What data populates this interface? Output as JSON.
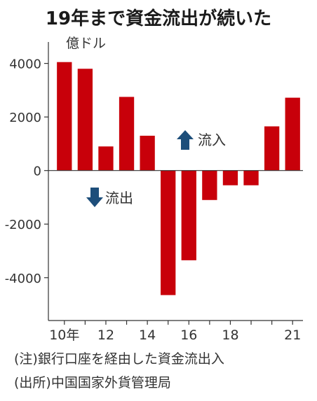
{
  "title": "19年まで資金流出が続いた",
  "notes": {
    "note": "(注)銀行口座を経由した資金流出入",
    "source": "(出所)中国国家外貨管理局"
  },
  "colors": {
    "bar": "#c8000a",
    "arrow": "#1d4e7a",
    "axis": "#333333"
  },
  "chart_data": {
    "type": "bar",
    "ylabel": "億ドル",
    "ylim": [
      -5600,
      4800
    ],
    "yticks": [
      4000,
      2000,
      0,
      -2000,
      -4000
    ],
    "ytick_labels": [
      "4000",
      "2000",
      "0",
      "-2000",
      "-4000"
    ],
    "x": [
      2010,
      2011,
      2012,
      2013,
      2014,
      2015,
      2016,
      2017,
      2018,
      2019,
      2020,
      2021
    ],
    "xtick_labels": [
      "10年",
      "",
      "12",
      "",
      "14",
      "",
      "16",
      "",
      "18",
      "",
      "",
      "21"
    ],
    "values": [
      4050,
      3800,
      900,
      2750,
      1300,
      -4650,
      -3350,
      -1100,
      -550,
      -550,
      1650,
      2720
    ],
    "annotations": [
      {
        "text": "流入",
        "direction": "up"
      },
      {
        "text": "流出",
        "direction": "down"
      }
    ]
  }
}
